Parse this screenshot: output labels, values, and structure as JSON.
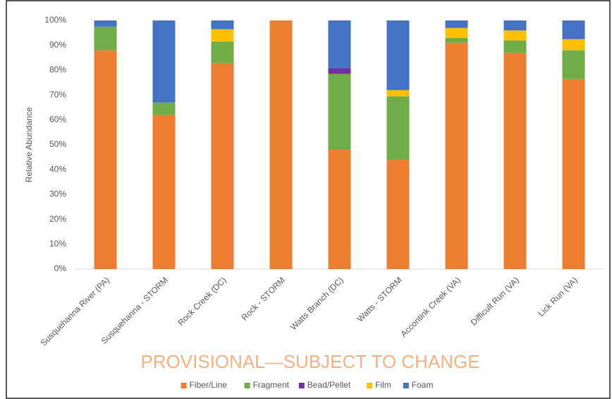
{
  "chart_data": {
    "type": "stacked_bar",
    "y_label": "Relative Abundance",
    "annotation": "PROVISIONAL—SUBJECT TO CHANGE",
    "categories": [
      "Susquehanna River (PA)",
      "Susquehanna - STORM",
      "Rock Creek (DC)",
      "Rock - STORM",
      "Watts Branch (DC)",
      "Watts - STORM",
      "Accontink Creek (VA)",
      "Difficult Run (VA)",
      "Lick Run (VA)"
    ],
    "series": [
      {
        "name": "Fiber/Line",
        "color": "#ed7d31",
        "values": [
          88,
          62,
          83,
          100,
          48,
          44,
          91,
          87,
          76.5
        ]
      },
      {
        "name": "Fragment",
        "color": "#70ad47",
        "values": [
          9.5,
          5,
          8.5,
          0,
          30.5,
          25.5,
          2,
          5,
          11.5
        ]
      },
      {
        "name": "Bead/Pellet",
        "color": "#7030a0",
        "values": [
          0,
          0,
          0,
          0,
          2.3,
          0,
          0,
          0,
          0
        ]
      },
      {
        "name": "Film",
        "color": "#ffc000",
        "values": [
          0,
          0,
          5,
          0,
          0,
          2.5,
          4,
          4,
          4.5
        ]
      },
      {
        "name": "Foam",
        "color": "#4472c4",
        "values": [
          2.5,
          33,
          3.5,
          0,
          19.2,
          28,
          3,
          4,
          7.5
        ]
      }
    ],
    "ylim": [
      0,
      100
    ],
    "yticks": [
      {
        "value": 0,
        "label": "0%"
      },
      {
        "value": 10,
        "label": "10%"
      },
      {
        "value": 20,
        "label": "20%"
      },
      {
        "value": 30,
        "label": "30%"
      },
      {
        "value": 40,
        "label": "40%"
      },
      {
        "value": 50,
        "label": "50%"
      },
      {
        "value": 60,
        "label": "60%"
      },
      {
        "value": 70,
        "label": "70%"
      },
      {
        "value": 80,
        "label": "80%"
      },
      {
        "value": 90,
        "label": "90%"
      },
      {
        "value": 100,
        "label": "100%"
      }
    ],
    "grid": false,
    "legend": "bottom"
  }
}
